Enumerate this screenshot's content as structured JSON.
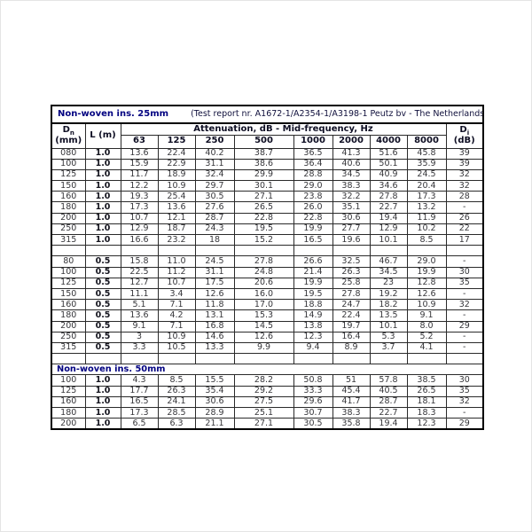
{
  "page": {
    "background": "#ffffff"
  },
  "colors": {
    "title_navy": "#000080",
    "header_text": "#0d0d22",
    "data_text": "#36363a",
    "inner_border": "#2a2a2a",
    "outer_border": "#000000"
  },
  "table": {
    "title": "Non-woven ins. 25mm",
    "report": "(Test report nr. A1672-1/A2354-1/A3198-1 Peutz bv - The Netherlands)",
    "headers": {
      "dn_base": "D",
      "dn_sub": "n",
      "dn_unit": "(mm)",
      "l": "L (m)",
      "attenuation": "Attenuation, dB - Mid-frequency, Hz",
      "frequencies": [
        "63",
        "125",
        "250",
        "500",
        "1000",
        "2000",
        "4000",
        "8000"
      ],
      "d_base": "D",
      "d_sub": "i",
      "d_unit": "(dB)"
    },
    "rows": [
      {
        "type": "data",
        "cells": [
          "080",
          "1.0",
          "13.6",
          "22.4",
          "40.2",
          "38.7",
          "36.5",
          "41.3",
          "51.6",
          "45.8",
          "39"
        ]
      },
      {
        "type": "data",
        "cells": [
          "100",
          "1.0",
          "15.9",
          "22.9",
          "31.1",
          "38.6",
          "36.4",
          "40.6",
          "50.1",
          "35.9",
          "39"
        ]
      },
      {
        "type": "data",
        "cells": [
          "125",
          "1.0",
          "11.7",
          "18.9",
          "32.4",
          "29.9",
          "28.8",
          "34.5",
          "40.9",
          "24.5",
          "32"
        ]
      },
      {
        "type": "data",
        "cells": [
          "150",
          "1.0",
          "12.2",
          "10.9",
          "29.7",
          "30.1",
          "29.0",
          "38.3",
          "34.6",
          "20.4",
          "32"
        ]
      },
      {
        "type": "data",
        "cells": [
          "160",
          "1.0",
          "19.3",
          "25.4",
          "30.5",
          "27.1",
          "23.8",
          "32.2",
          "27.8",
          "17.3",
          "28"
        ]
      },
      {
        "type": "data",
        "cells": [
          "180",
          "1.0",
          "17.3",
          "13.6",
          "27.6",
          "26.5",
          "26.0",
          "35.1",
          "22.7",
          "13.2",
          "-"
        ]
      },
      {
        "type": "data",
        "cells": [
          "200",
          "1.0",
          "10.7",
          "12.1",
          "28.7",
          "22.8",
          "22.8",
          "30.6",
          "19.4",
          "11.9",
          "26"
        ]
      },
      {
        "type": "data",
        "cells": [
          "250",
          "1.0",
          "12.9",
          "18.7",
          "24.3",
          "19.5",
          "19.9",
          "27.7",
          "12.9",
          "10.2",
          "22"
        ]
      },
      {
        "type": "data",
        "cells": [
          "315",
          "1.0",
          "16.6",
          "23.2",
          "18",
          "15.2",
          "16.5",
          "19.6",
          "10.1",
          "8.5",
          "17"
        ]
      },
      {
        "type": "empty"
      },
      {
        "type": "data",
        "cells": [
          "80",
          "0.5",
          "15.8",
          "11.0",
          "24.5",
          "27.8",
          "26.6",
          "32.5",
          "46.7",
          "29.0",
          "-"
        ]
      },
      {
        "type": "data",
        "cells": [
          "100",
          "0.5",
          "22.5",
          "11.2",
          "31.1",
          "24.8",
          "21.4",
          "26.3",
          "34.5",
          "19.9",
          "30"
        ]
      },
      {
        "type": "data",
        "cells": [
          "125",
          "0.5",
          "12.7",
          "10.7",
          "17.5",
          "20.6",
          "19.9",
          "25.8",
          "23",
          "12.8",
          "35"
        ]
      },
      {
        "type": "data",
        "cells": [
          "150",
          "0.5",
          "11.1",
          "3.4",
          "12.6",
          "16.0",
          "19.5",
          "27.8",
          "19.2",
          "12.6",
          "-"
        ]
      },
      {
        "type": "data",
        "cells": [
          "160",
          "0.5",
          "5.1",
          "7.1",
          "11.8",
          "17.0",
          "18.8",
          "24.7",
          "18.2",
          "10.9",
          "32"
        ]
      },
      {
        "type": "data",
        "cells": [
          "180",
          "0.5",
          "13.6",
          "4.2",
          "13.1",
          "15.3",
          "14.9",
          "22.4",
          "13.5",
          "9.1",
          "-"
        ]
      },
      {
        "type": "data",
        "cells": [
          "200",
          "0.5",
          "9.1",
          "7.1",
          "16.8",
          "14.5",
          "13.8",
          "19.7",
          "10.1",
          "8.0",
          "29"
        ]
      },
      {
        "type": "data",
        "cells": [
          "250",
          "0.5",
          "3",
          "10.9",
          "14.6",
          "12.6",
          "12.3",
          "16.4",
          "5.3",
          "5.2",
          "-"
        ]
      },
      {
        "type": "data",
        "cells": [
          "315",
          "0.5",
          "3.3",
          "10.5",
          "13.3",
          "9.9",
          "9.4",
          "8.9",
          "3.7",
          "4.1",
          "-"
        ]
      },
      {
        "type": "empty"
      },
      {
        "type": "section",
        "label": "Non-woven ins. 50mm"
      },
      {
        "type": "data",
        "cells": [
          "100",
          "1.0",
          "4.3",
          "8.5",
          "15.5",
          "28.2",
          "50.8",
          "51",
          "57.8",
          "38.5",
          "30"
        ]
      },
      {
        "type": "data",
        "cells": [
          "125",
          "1.0",
          "17.7",
          "26.3",
          "35.4",
          "29.2",
          "33.3",
          "45.4",
          "40.5",
          "26.5",
          "35"
        ]
      },
      {
        "type": "data",
        "cells": [
          "160",
          "1.0",
          "16.5",
          "24.1",
          "30.6",
          "27.5",
          "29.6",
          "41.7",
          "28.7",
          "18.1",
          "32"
        ]
      },
      {
        "type": "data",
        "cells": [
          "180",
          "1.0",
          "17.3",
          "28.5",
          "28.9",
          "25.1",
          "30.7",
          "38.3",
          "22.7",
          "18.3",
          "-"
        ]
      },
      {
        "type": "data",
        "cells": [
          "200",
          "1.0",
          "6.5",
          "6.3",
          "21.1",
          "27.1",
          "30.5",
          "35.8",
          "19.4",
          "12.3",
          "29"
        ]
      }
    ]
  }
}
